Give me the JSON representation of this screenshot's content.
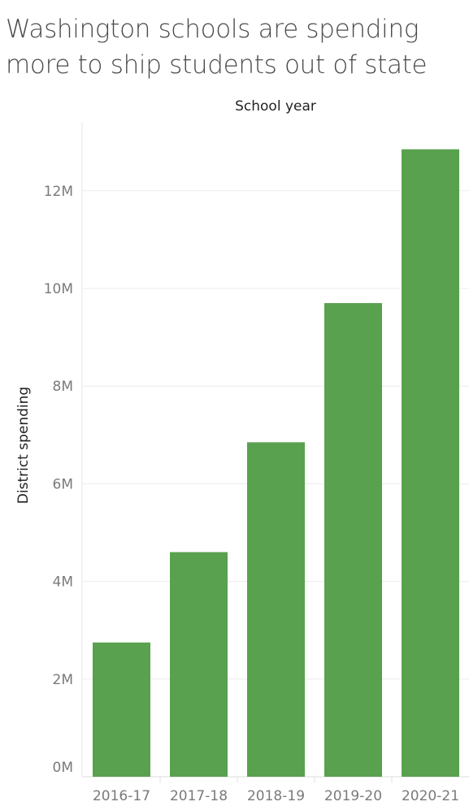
{
  "title_lines": [
    "Washington schools are spending",
    "more to ship students out of state"
  ],
  "chart_data": {
    "type": "bar",
    "xlabel": "School year",
    "ylabel": "District spending",
    "categories": [
      "2016-17",
      "2017-18",
      "2018-19",
      "2019-20",
      "2020-21"
    ],
    "values": [
      2750000,
      4600000,
      6850000,
      9700000,
      12850000
    ],
    "yticks": [
      0,
      2000000,
      4000000,
      6000000,
      8000000,
      10000000,
      12000000
    ],
    "ytick_labels": [
      "0M",
      "2M",
      "4M",
      "6M",
      "8M",
      "10M",
      "12M"
    ],
    "ylim": [
      0,
      13500000
    ],
    "grid": true,
    "bar_color": "#59a14f"
  }
}
